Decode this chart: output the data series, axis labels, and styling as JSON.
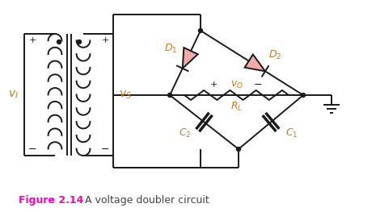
{
  "fig_width": 4.65,
  "fig_height": 2.63,
  "dpi": 100,
  "background_color": "#ffffff",
  "line_color": "#1a1a1a",
  "line_width": 1.4,
  "orange_color": "#CC7722",
  "magenta_color": "#FF00BB",
  "diode_fill_color": "#F2AAAA",
  "caption_bold": "Figure 2.14",
  "caption_rest": "  A voltage doubler circuit"
}
